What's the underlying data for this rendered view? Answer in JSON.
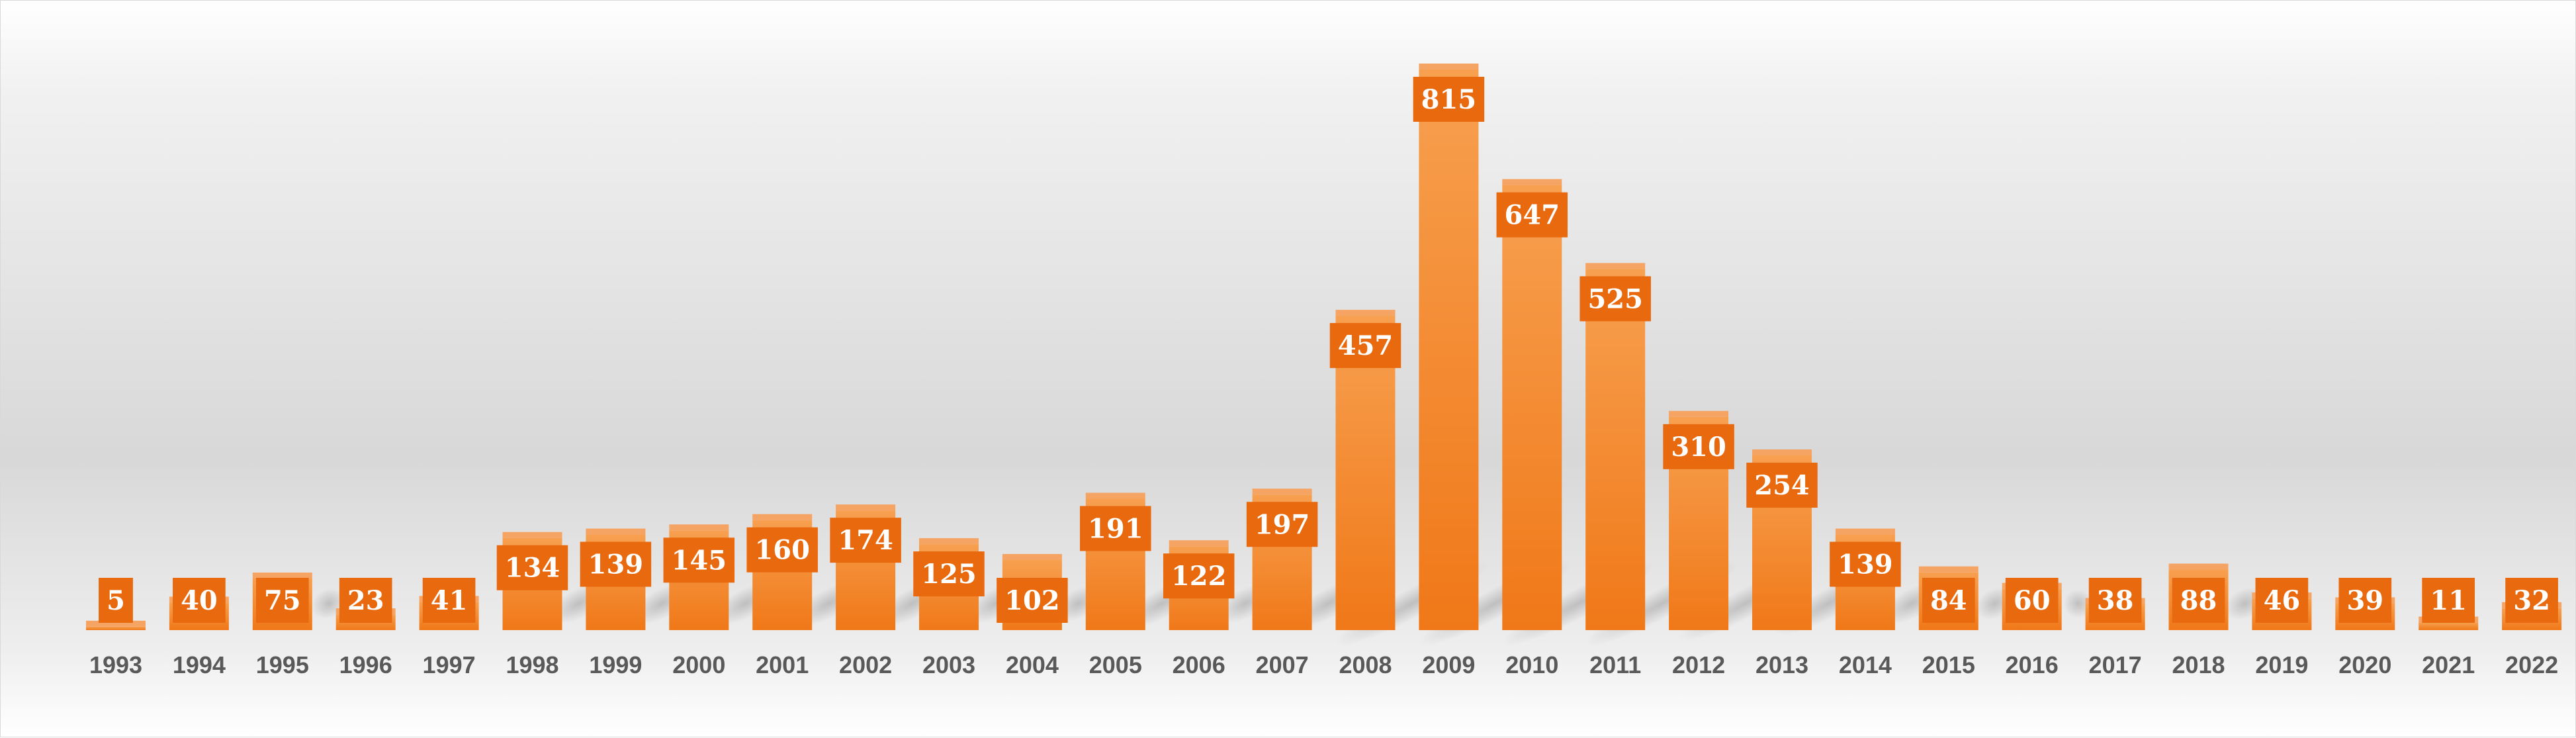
{
  "chart_data": {
    "type": "bar",
    "categories": [
      "1993",
      "1994",
      "1995",
      "1996",
      "1997",
      "1998",
      "1999",
      "2000",
      "2001",
      "2002",
      "2003",
      "2004",
      "2005",
      "2006",
      "2007",
      "2008",
      "2009",
      "2010",
      "2011",
      "2012",
      "2013",
      "2014",
      "2015",
      "2016",
      "2017",
      "2018",
      "2019",
      "2020",
      "2021",
      "2022"
    ],
    "values": [
      5,
      40,
      75,
      23,
      41,
      134,
      139,
      145,
      160,
      174,
      125,
      102,
      191,
      122,
      197,
      457,
      815,
      647,
      525,
      310,
      254,
      139,
      84,
      60,
      38,
      88,
      46,
      39,
      11,
      32
    ],
    "title": "",
    "xlabel": "",
    "ylabel": "",
    "ylim": [
      0,
      900
    ],
    "grid": false,
    "legend": "none",
    "data_labels": true,
    "colors": {
      "bar_top": "#f7a050",
      "bar_bottom": "#f07818",
      "bar_cap": "#f5a464",
      "label_box": "#e8690e",
      "label_text": "#ffffff",
      "tick_text": "#595959"
    }
  }
}
